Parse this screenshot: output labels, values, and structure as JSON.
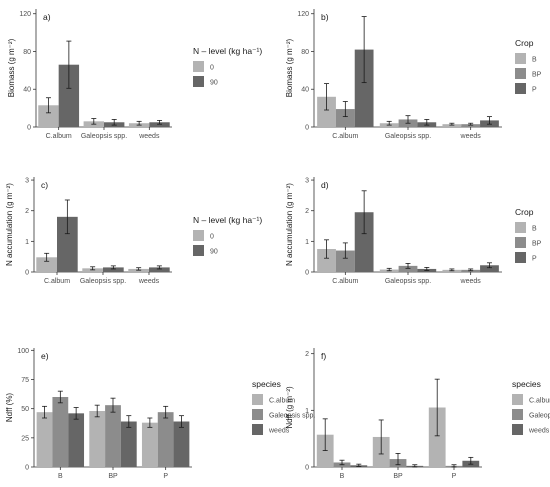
{
  "chart_data": [
    {
      "panel": "a)",
      "type": "bar",
      "ylabel": "Biomass (g m⁻²)",
      "categories": [
        "C.album",
        "Galeopsis spp.",
        "weeds"
      ],
      "ylim": [
        0,
        125
      ],
      "yticks": [
        "0",
        "40",
        "80",
        "120"
      ],
      "ytickvals": [
        0,
        40,
        80,
        120
      ],
      "series": [
        {
          "name": "0",
          "values": [
            23,
            6,
            4
          ],
          "err": [
            8,
            3,
            2
          ]
        },
        {
          "name": "90",
          "values": [
            66,
            5,
            5
          ],
          "err": [
            25,
            3,
            2
          ]
        }
      ],
      "legend": {
        "title": "N – level (kg ha⁻¹)",
        "entries": [
          "0",
          "90"
        ],
        "colors": [
          "#b3b3b3",
          "#666666"
        ],
        "placement": "right"
      }
    },
    {
      "panel": "b)",
      "type": "bar",
      "ylabel": "Biomass (g m⁻²)",
      "categories": [
        "C.album",
        "Galeopsis spp.",
        "weeds"
      ],
      "ylim": [
        0,
        125
      ],
      "yticks": [
        "0",
        "40",
        "80",
        "120"
      ],
      "ytickvals": [
        0,
        40,
        80,
        120
      ],
      "series": [
        {
          "name": "B",
          "values": [
            32,
            4,
            3
          ],
          "err": [
            14,
            2,
            1
          ]
        },
        {
          "name": "BP",
          "values": [
            19,
            8,
            3
          ],
          "err": [
            8,
            4,
            1
          ]
        },
        {
          "name": "P",
          "values": [
            82,
            5,
            7
          ],
          "err": [
            35,
            3,
            4
          ]
        }
      ],
      "legend": {
        "title": "Crop",
        "entries": [
          "B",
          "BP",
          "P"
        ],
        "colors": [
          "#b3b3b3",
          "#8c8c8c",
          "#666666"
        ],
        "placement": "right"
      }
    },
    {
      "panel": "c)",
      "type": "bar",
      "ylabel": "N accumulation (g m⁻²)",
      "categories": [
        "C.album",
        "Galeopsis spp.",
        "weeds"
      ],
      "ylim": [
        0,
        3.1
      ],
      "yticks": [
        "0",
        "1",
        "2",
        "3"
      ],
      "ytickvals": [
        0,
        1,
        2,
        3
      ],
      "series": [
        {
          "name": "0",
          "values": [
            0.48,
            0.12,
            0.1
          ],
          "err": [
            0.13,
            0.05,
            0.04
          ]
        },
        {
          "name": "90",
          "values": [
            1.8,
            0.15,
            0.15
          ],
          "err": [
            0.55,
            0.05,
            0.05
          ]
        }
      ],
      "legend": {
        "title": "N – level (kg ha⁻¹)",
        "entries": [
          "0",
          "90"
        ],
        "colors": [
          "#b3b3b3",
          "#666666"
        ],
        "placement": "right"
      }
    },
    {
      "panel": "d)",
      "type": "bar",
      "ylabel": "N accumulation (g m⁻²)",
      "categories": [
        "C.album",
        "Galeopsis spp.",
        "weeds"
      ],
      "ylim": [
        0,
        3.1
      ],
      "yticks": [
        "0",
        "1",
        "2",
        "3"
      ],
      "ytickvals": [
        0,
        1,
        2,
        3
      ],
      "series": [
        {
          "name": "B",
          "values": [
            0.75,
            0.08,
            0.07
          ],
          "err": [
            0.3,
            0.04,
            0.03
          ]
        },
        {
          "name": "BP",
          "values": [
            0.7,
            0.2,
            0.07
          ],
          "err": [
            0.25,
            0.08,
            0.03
          ]
        },
        {
          "name": "P",
          "values": [
            1.95,
            0.1,
            0.22
          ],
          "err": [
            0.7,
            0.05,
            0.08
          ]
        }
      ],
      "legend": {
        "title": "Crop",
        "entries": [
          "B",
          "BP",
          "P"
        ],
        "colors": [
          "#b3b3b3",
          "#8c8c8c",
          "#666666"
        ],
        "placement": "right"
      }
    },
    {
      "panel": "e)",
      "type": "bar",
      "ylabel": "Ndff (%)",
      "categories": [
        "B",
        "BP",
        "P"
      ],
      "ylim": [
        0,
        102
      ],
      "yticks": [
        "0",
        "25",
        "50",
        "75",
        "100"
      ],
      "ytickvals": [
        0,
        25,
        50,
        75,
        100
      ],
      "series": [
        {
          "name": "C.album",
          "values": [
            47,
            48,
            38
          ],
          "err": [
            5,
            5,
            4
          ]
        },
        {
          "name": "Galeopsis spp.",
          "values": [
            60,
            53,
            47
          ],
          "err": [
            5,
            6,
            5
          ]
        },
        {
          "name": "weeds",
          "values": [
            46,
            39,
            39
          ],
          "err": [
            5,
            5,
            5
          ]
        }
      ],
      "legend": {
        "title": "species",
        "entries": [
          "C.album",
          "Galeopsis spp.",
          "weeds"
        ],
        "colors": [
          "#b3b3b3",
          "#8c8c8c",
          "#666666"
        ],
        "placement": "right"
      }
    },
    {
      "panel": "f)",
      "type": "bar",
      "ylabel": "Ndff (g m⁻²)",
      "categories": [
        "B",
        "BP",
        "P"
      ],
      "ylim": [
        0,
        2.1
      ],
      "yticks": [
        "0",
        "1",
        "2"
      ],
      "ytickvals": [
        0,
        1,
        2
      ],
      "series": [
        {
          "name": "C.album",
          "values": [
            0.57,
            0.53,
            1.05
          ],
          "err": [
            0.28,
            0.3,
            0.5
          ]
        },
        {
          "name": "Galeopsis spp.",
          "values": [
            0.08,
            0.14,
            0.02
          ],
          "err": [
            0.04,
            0.1,
            0.02
          ]
        },
        {
          "name": "weeds",
          "values": [
            0.03,
            0.02,
            0.11
          ],
          "err": [
            0.02,
            0.02,
            0.06
          ]
        }
      ],
      "legend": {
        "title": "species",
        "entries": [
          "C.album",
          "Galeopsis spp.",
          "weeds"
        ],
        "colors": [
          "#b3b3b3",
          "#8c8c8c",
          "#666666"
        ],
        "placement": "right"
      }
    }
  ]
}
